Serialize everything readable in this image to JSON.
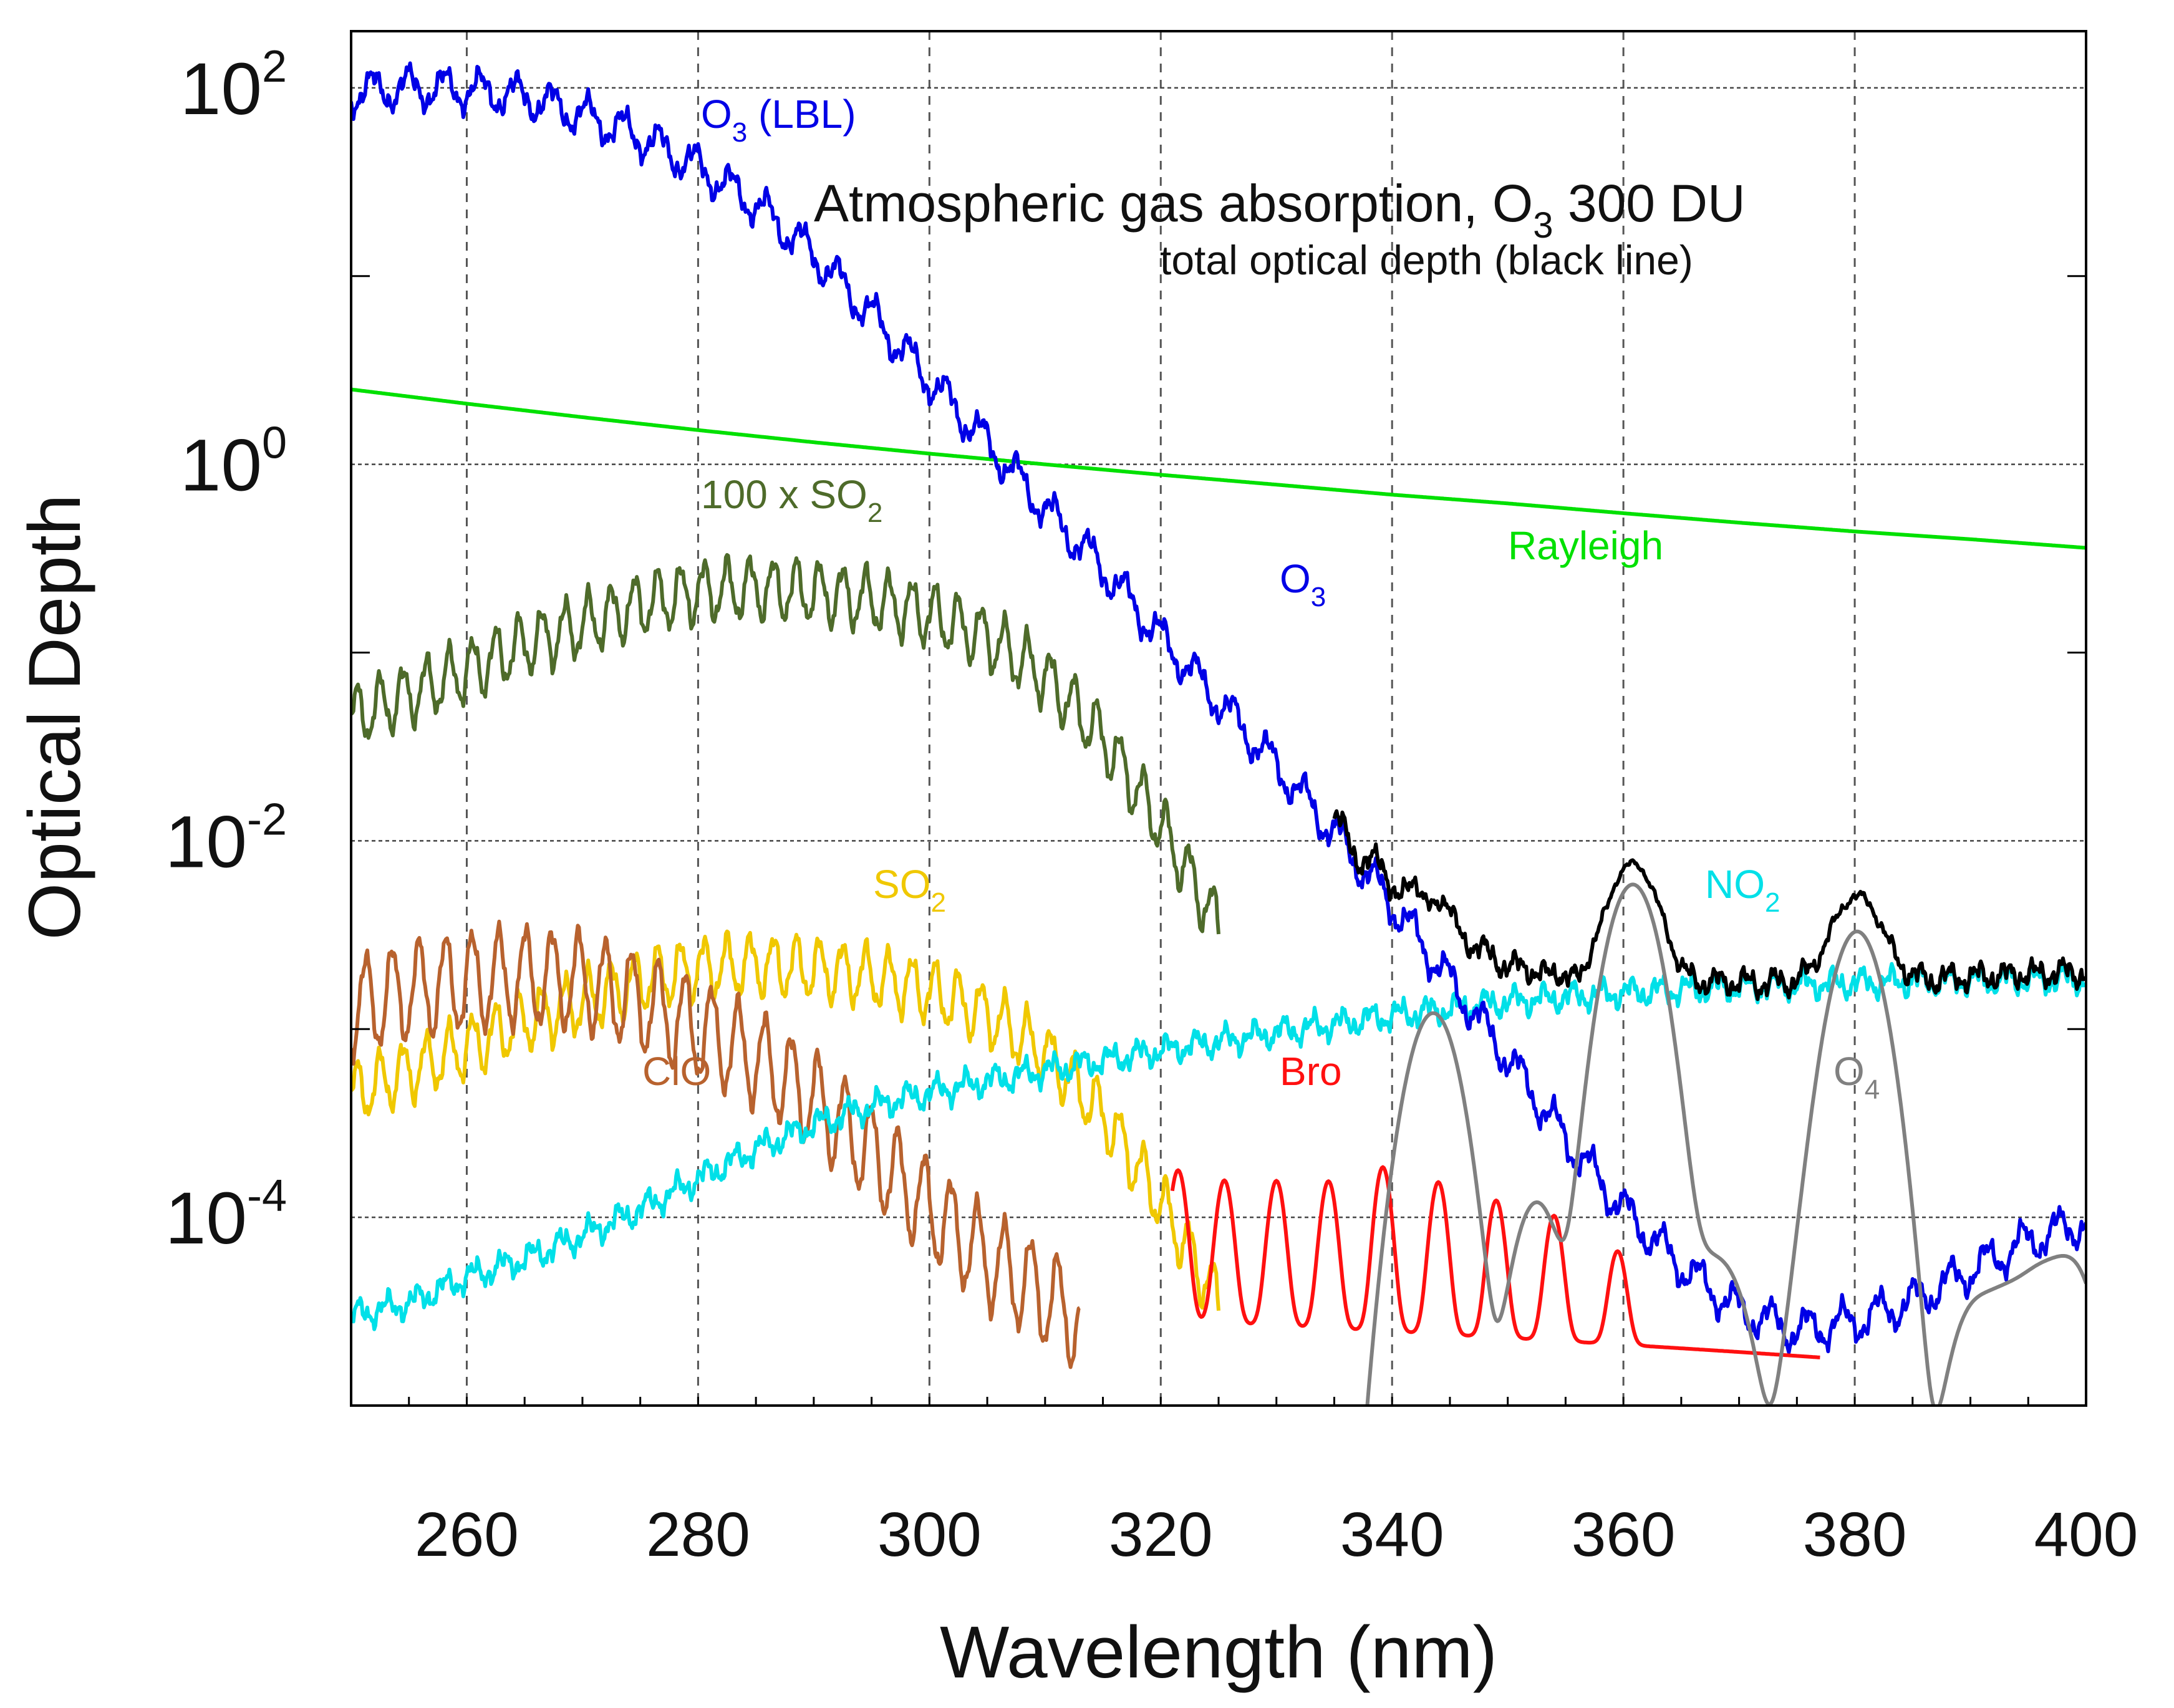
{
  "chart_data": {
    "type": "line",
    "title": "Atmospheric gas absorption, O3 300 DU",
    "title_parts": {
      "pre": "Atmospheric gas absorption, O",
      "sub": "3",
      "post": " 300 DU"
    },
    "subtitle": "total optical depth (black line)",
    "xlabel": "Wavelength (nm)",
    "ylabel": "Optical Depth",
    "x_scale": "linear",
    "y_scale": "log",
    "xlim": [
      250,
      400
    ],
    "ylim": [
      1e-05,
      200
    ],
    "x_ticks": [
      260,
      280,
      300,
      320,
      340,
      360,
      380,
      400
    ],
    "x_tick_labels": [
      "260",
      "280",
      "300",
      "320",
      "340",
      "360",
      "380",
      "400"
    ],
    "y_ticks": [
      {
        "value": 100,
        "base": "10",
        "exp": "2"
      },
      {
        "value": 1,
        "base": "10",
        "exp": "0"
      },
      {
        "value": 0.01,
        "base": "10",
        "exp": "-2"
      },
      {
        "value": 0.0001,
        "base": "10",
        "exp": "-4"
      }
    ],
    "grid": true,
    "series": [
      {
        "name": "Rayleigh",
        "color": "#00e000",
        "x": [
          250,
          260,
          270,
          280,
          290,
          300,
          310,
          320,
          330,
          340,
          350,
          360,
          370,
          380,
          390,
          400
        ],
        "y": [
          2.5,
          2.1,
          1.78,
          1.52,
          1.31,
          1.14,
          1.0,
          0.88,
          0.78,
          0.69,
          0.62,
          0.55,
          0.49,
          0.44,
          0.4,
          0.36
        ]
      },
      {
        "name": "O3 (LBL)",
        "color": "#0000e6",
        "x": [
          250,
          255,
          260,
          265,
          270,
          275,
          280,
          285,
          290,
          295,
          300,
          305,
          310,
          315,
          320,
          325,
          330,
          335,
          340,
          345,
          350,
          355,
          360,
          365,
          370,
          375,
          380,
          385,
          390,
          395,
          400
        ],
        "y": [
          95,
          100,
          98,
          90,
          72,
          55,
          38,
          24,
          13,
          6.2,
          2.8,
          1.3,
          0.58,
          0.28,
          0.12,
          0.055,
          0.025,
          0.011,
          0.0046,
          0.0018,
          0.0007,
          0.00026,
          0.00011,
          5.5e-05,
          3.2e-05,
          2.5e-05,
          2.8e-05,
          3.6e-05,
          5.2e-05,
          7.5e-05,
          9.5e-05
        ],
        "band_amplitude": 0.09,
        "band_period_nm": 3.1
      },
      {
        "name": "100 x SO2",
        "color": "#4e6b2a",
        "x": [
          250,
          255,
          260,
          265,
          270,
          275,
          280,
          285,
          290,
          295,
          300,
          305,
          310,
          315,
          320,
          325
        ],
        "y": [
          0.045,
          0.06,
          0.08,
          0.11,
          0.14,
          0.18,
          0.21,
          0.22,
          0.21,
          0.19,
          0.16,
          0.12,
          0.075,
          0.035,
          0.012,
          0.0035
        ],
        "band_amplitude": 0.15,
        "band_period_nm": 2.0
      },
      {
        "name": "SO2",
        "color": "#f0c800",
        "x": [
          250,
          255,
          260,
          265,
          270,
          275,
          280,
          285,
          290,
          295,
          300,
          305,
          310,
          315,
          320,
          325
        ],
        "y": [
          0.00045,
          0.0006,
          0.0008,
          0.0011,
          0.0014,
          0.0018,
          0.0021,
          0.0022,
          0.0021,
          0.0019,
          0.0016,
          0.0012,
          0.00075,
          0.00035,
          0.00012,
          3.5e-05
        ],
        "band_amplitude": 0.15,
        "band_period_nm": 2.0
      },
      {
        "name": "ClO",
        "color": "#b8622e",
        "x": [
          250,
          255,
          260,
          265,
          270,
          275,
          280,
          285,
          290,
          295,
          300,
          305,
          310,
          313
        ],
        "y": [
          0.0013,
          0.0016,
          0.0018,
          0.0019,
          0.0018,
          0.0014,
          0.001,
          0.0007,
          0.00042,
          0.00022,
          0.00011,
          6e-05,
          3.8e-05,
          2.8e-05
        ],
        "band_amplitude": 0.25,
        "band_period_nm": 2.3
      },
      {
        "name": "NO2",
        "color": "#00e0e8",
        "x": [
          250,
          255,
          260,
          265,
          270,
          275,
          280,
          285,
          290,
          295,
          300,
          305,
          310,
          315,
          320,
          325,
          330,
          335,
          340,
          345,
          350,
          355,
          360,
          365,
          370,
          375,
          380,
          385,
          390,
          395,
          400
        ],
        "y": [
          3e-05,
          3.5e-05,
          4.8e-05,
          6e-05,
          8e-05,
          0.00011,
          0.00016,
          0.00023,
          0.00031,
          0.00039,
          0.00046,
          0.00053,
          0.0006,
          0.00068,
          0.00077,
          0.00086,
          0.00096,
          0.00106,
          0.00118,
          0.00128,
          0.0014,
          0.00148,
          0.00156,
          0.00162,
          0.00168,
          0.00172,
          0.00176,
          0.00179,
          0.00181,
          0.00183,
          0.00185
        ],
        "band_amplitude": 0.05,
        "band_period_nm": 2.5
      },
      {
        "name": "BrO",
        "color": "#ff1010",
        "x": [
          321,
          377
        ],
        "band_centers": [
          321.5,
          325.5,
          330.0,
          334.5,
          339.2,
          344.0,
          349.0,
          354.0,
          359.5
        ],
        "band_peaks": [
          0.00015,
          0.00013,
          0.00013,
          0.00013,
          0.00016,
          0.00013,
          0.0001,
          8e-05,
          4.5e-05
        ],
        "baseline": [
          2.8e-05,
          1.8e-05
        ]
      },
      {
        "name": "O4",
        "color": "#808080",
        "x": [
          336,
          400
        ],
        "band_centers": [
          343.5,
          360.8,
          380.2,
          344.0,
          352.5,
          362.0,
          367.0,
          369.3,
          376.0,
          390,
          393,
          396,
          399
        ],
        "band_peaks": [
          0.0011,
          0.0058,
          0.0033,
          0.00012,
          0.00012,
          8e-05,
          4e-05,
          3.5e-05,
          3e-05,
          2.8e-05,
          3e-05,
          4e-05,
          5e-05
        ]
      },
      {
        "name": "Total",
        "color": "#000000",
        "x": [
          335,
          400
        ]
      }
    ],
    "annotations": [
      {
        "id": "o3lbl",
        "pre": "O",
        "sub": "3",
        "post": " (LBL)",
        "color": "#0000e6"
      },
      {
        "id": "o3",
        "pre": "O",
        "sub": "3",
        "post": "",
        "color": "#0000e6"
      },
      {
        "id": "rayleigh",
        "pre": "Rayleigh",
        "sub": "",
        "post": "",
        "color": "#00e000"
      },
      {
        "id": "so2x100",
        "pre": "100 x SO",
        "sub": "2",
        "post": "",
        "color": "#4e6b2a"
      },
      {
        "id": "so2",
        "pre": "SO",
        "sub": "2",
        "post": "",
        "color": "#f0c800"
      },
      {
        "id": "clo",
        "pre": "ClO",
        "sub": "",
        "post": "",
        "color": "#b8622e"
      },
      {
        "id": "bro",
        "pre": "Bro",
        "sub": "",
        "post": "",
        "color": "#ff1010"
      },
      {
        "id": "no2",
        "pre": "NO",
        "sub": "2",
        "post": "",
        "color": "#00e0e8"
      },
      {
        "id": "o4",
        "pre": "O",
        "sub": "4",
        "post": "",
        "color": "#808080"
      }
    ]
  }
}
